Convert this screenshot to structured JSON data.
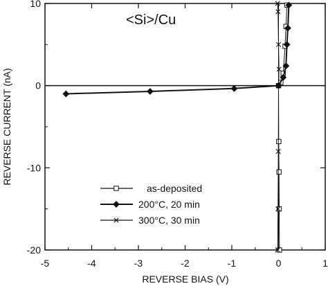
{
  "chart_data": {
    "type": "line",
    "title": "<Si>/Cu",
    "xlabel": "REVERSE BIAS (V)",
    "ylabel": "REVERSE CURRENT (nA)",
    "xlim": [
      -5,
      1
    ],
    "ylim": [
      -20,
      10
    ],
    "xticks": [
      "-5",
      "-4",
      "-3",
      "-2",
      "-1",
      "0",
      "1"
    ],
    "yticks": [
      "10",
      "0",
      "-10",
      "-20"
    ],
    "legend_position": "lower-center",
    "grid": false,
    "series": [
      {
        "name": "as-deposited",
        "marker": "square",
        "points": [
          [
            0.02,
            -20
          ],
          [
            0.015,
            -15
          ],
          [
            0.01,
            -10.5
          ],
          [
            0.005,
            -6.8
          ],
          [
            0.0,
            0.0
          ],
          [
            0.05,
            0.4
          ],
          [
            0.1,
            1.5
          ],
          [
            0.14,
            4.8
          ],
          [
            0.16,
            7.2
          ],
          [
            0.18,
            9.8
          ]
        ]
      },
      {
        "name": "200°C, 20 min",
        "marker": "diamond",
        "points": [
          [
            -4.55,
            -1.0
          ],
          [
            -2.75,
            -0.7
          ],
          [
            -0.95,
            -0.35
          ],
          [
            0.0,
            0.0
          ],
          [
            0.1,
            1.0
          ],
          [
            0.16,
            2.4
          ],
          [
            0.18,
            5.0
          ],
          [
            0.2,
            7.0
          ],
          [
            0.22,
            9.8
          ]
        ]
      },
      {
        "name": "300°C, 30 min",
        "marker": "x",
        "points": [
          [
            -0.02,
            -20
          ],
          [
            -0.01,
            -15
          ],
          [
            -0.005,
            -8
          ],
          [
            0.0,
            0.0
          ],
          [
            0.01,
            2
          ],
          [
            0.0,
            5
          ],
          [
            -0.01,
            9
          ],
          [
            -0.02,
            10
          ]
        ]
      }
    ]
  }
}
